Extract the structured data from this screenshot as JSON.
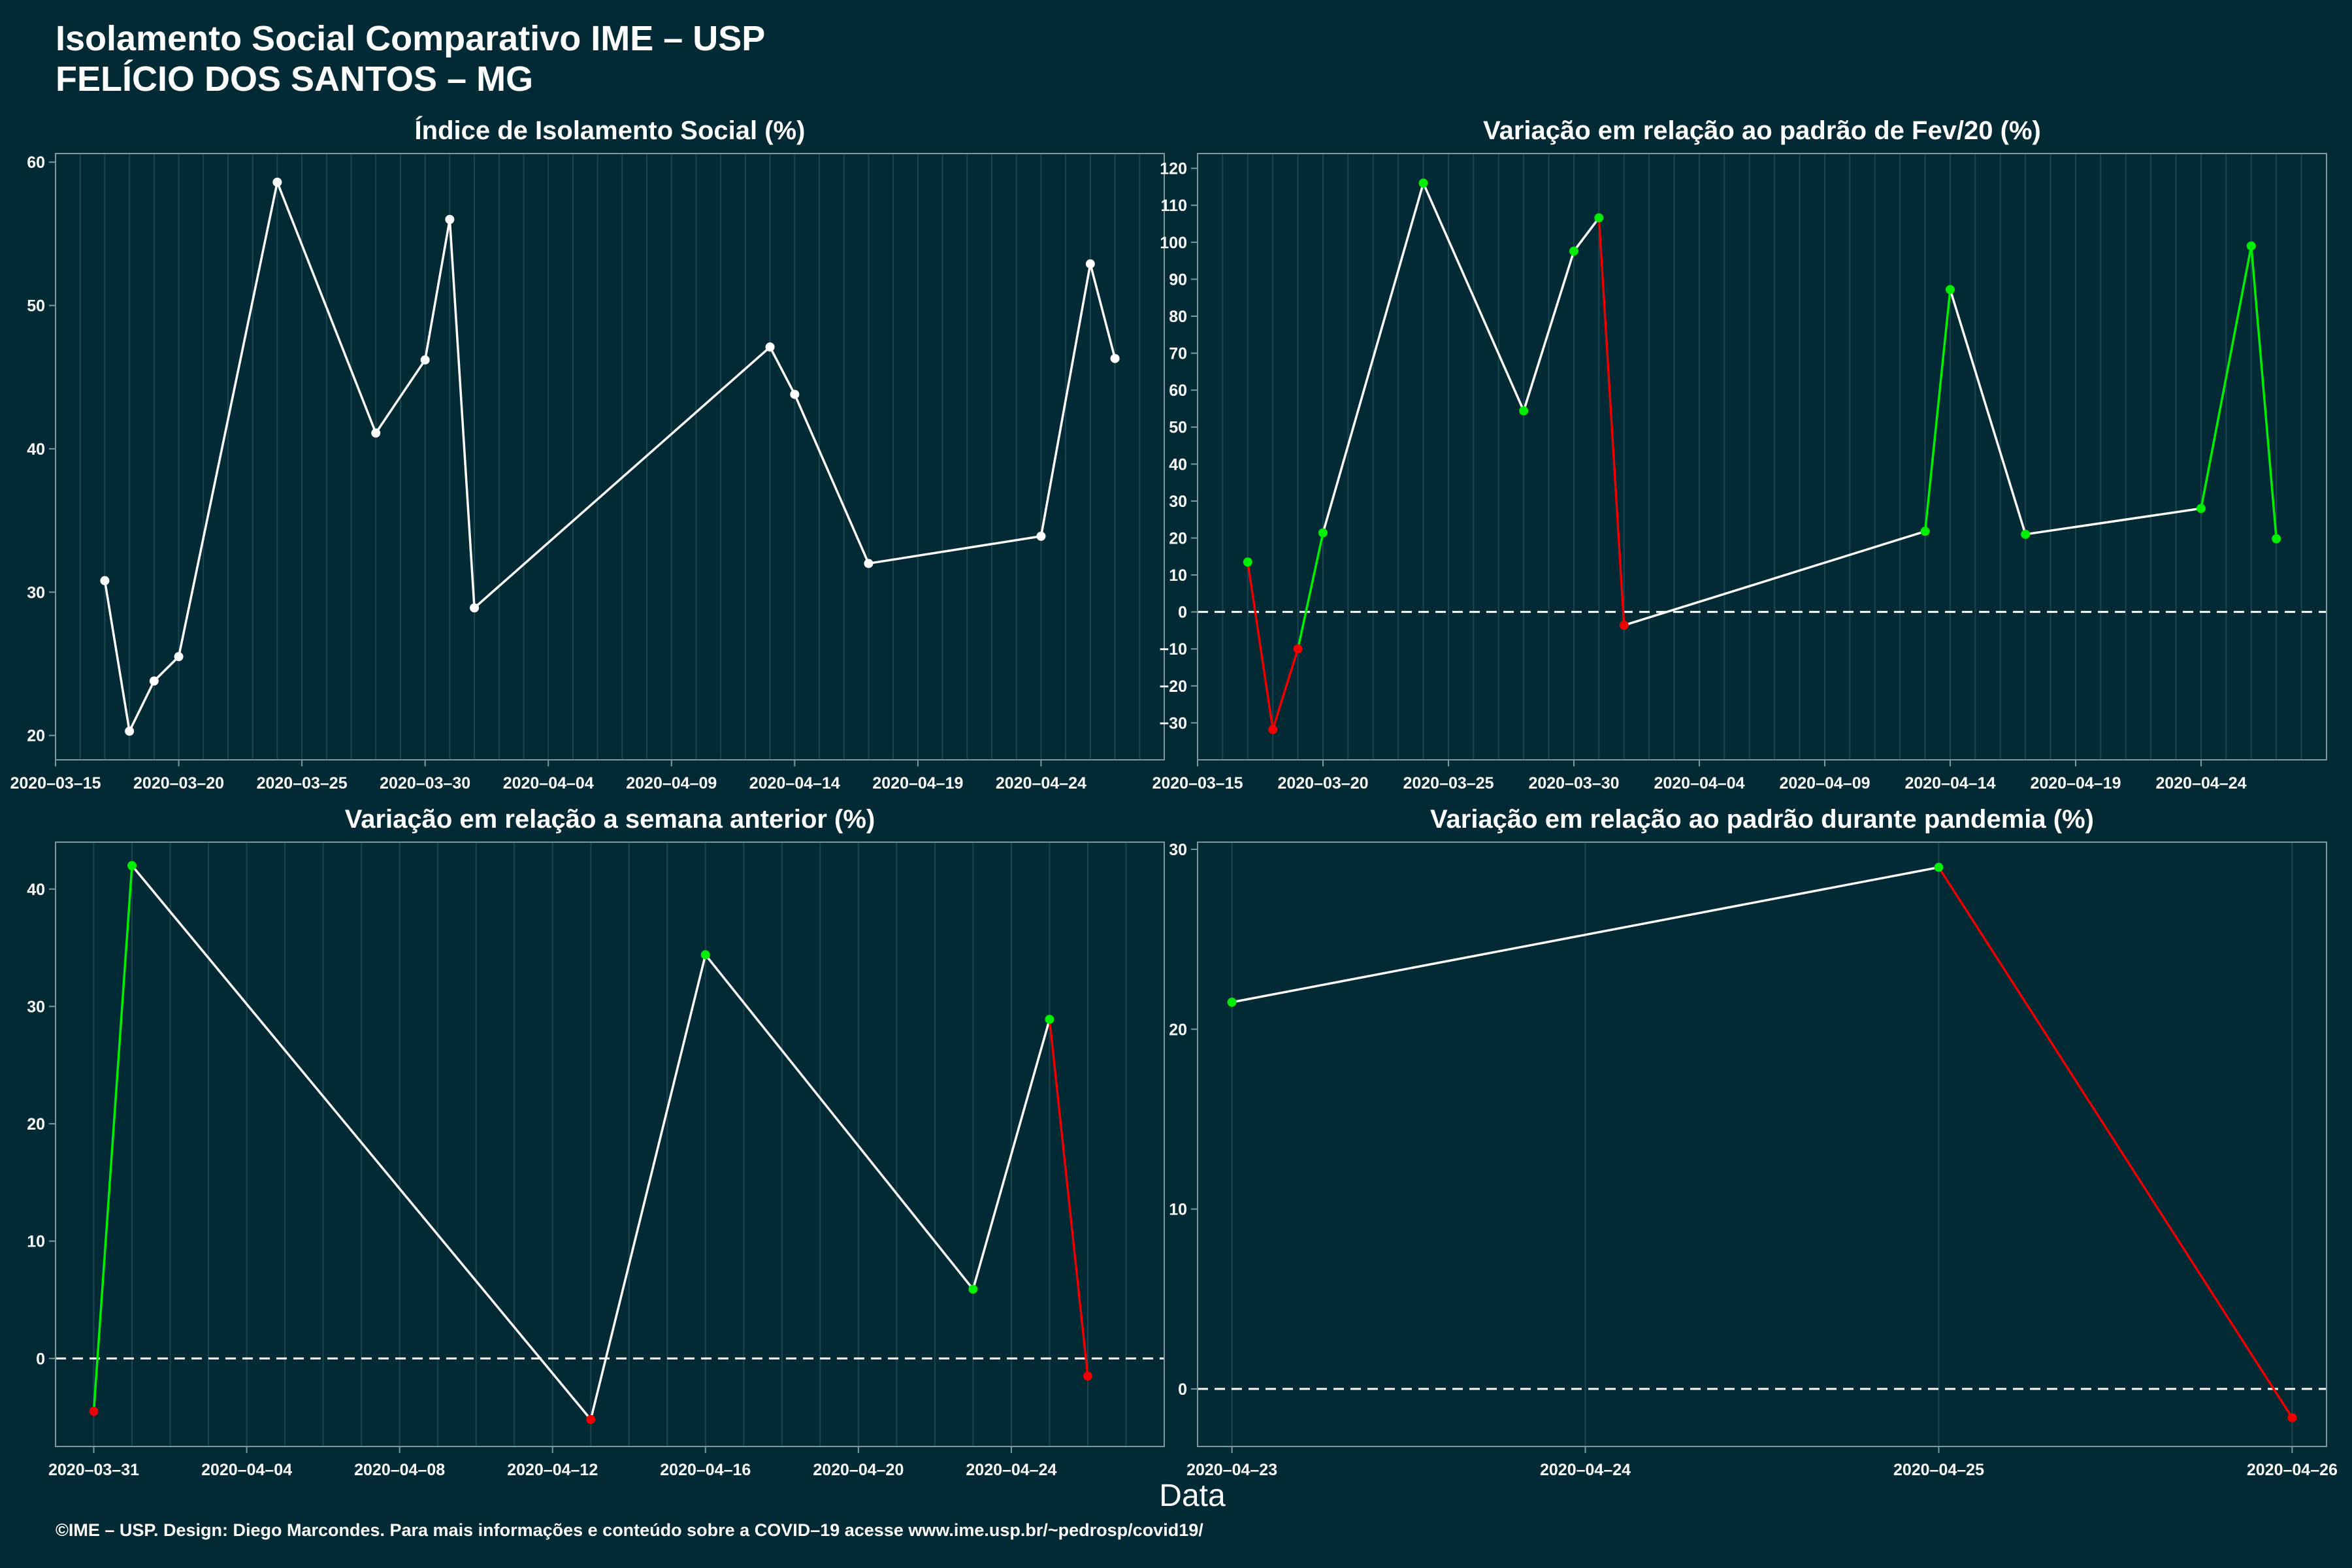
{
  "title_line1": "Isolamento Social Comparativo IME – USP",
  "title_line2": "FELÍCIO DOS SANTOS – MG",
  "x_axis_label": "Data",
  "footer": "©IME – USP. Design: Diego Marcondes. Para mais informações e conteúdo sobre a COVID–19 acesse www.ime.usp.br/~pedrosp/covid19/",
  "colors": {
    "background": "#012a35",
    "panel_border": "#7f98a0",
    "gridline": "#1d4550",
    "neutral": "#ffffff",
    "increase": "#00ee00",
    "decrease": "#ee0000"
  },
  "chart_data": [
    {
      "type": "line",
      "title": "Índice de Isolamento Social (%)",
      "xlim": [
        "2020-03-15",
        "2020-04-29"
      ],
      "ylim": [
        18.3,
        60.6
      ],
      "xticks": [
        "2020-03-15",
        "2020-03-20",
        "2020-03-25",
        "2020-03-30",
        "2020-04-04",
        "2020-04-09",
        "2020-04-14",
        "2020-04-19",
        "2020-04-24"
      ],
      "xtick_labels": [
        "2020–03–15",
        "2020–03–20",
        "2020–03–25",
        "2020–03–30",
        "2020–04–04",
        "2020–04–09",
        "2020–04–14",
        "2020–04–19",
        "2020–04–24"
      ],
      "yticks": [
        20,
        30,
        40,
        50,
        60
      ],
      "ytick_labels": [
        "20",
        "30",
        "40",
        "50",
        "60"
      ],
      "zero_line": false,
      "x": [
        "2020-03-17",
        "2020-03-18",
        "2020-03-19",
        "2020-03-20",
        "2020-03-24",
        "2020-03-28",
        "2020-03-30",
        "2020-03-31",
        "2020-04-01",
        "2020-04-13",
        "2020-04-14",
        "2020-04-17",
        "2020-04-24",
        "2020-04-26",
        "2020-04-27"
      ],
      "y": [
        30.8,
        20.3,
        23.8,
        25.5,
        58.6,
        41.1,
        46.2,
        56.0,
        28.9,
        47.1,
        43.8,
        32.0,
        33.9,
        52.9,
        46.3
      ],
      "point_colors": [
        "neutral",
        "neutral",
        "neutral",
        "neutral",
        "neutral",
        "neutral",
        "neutral",
        "neutral",
        "neutral",
        "neutral",
        "neutral",
        "neutral",
        "neutral",
        "neutral",
        "neutral"
      ],
      "segment_colors": [
        "neutral",
        "neutral",
        "neutral",
        "neutral",
        "neutral",
        "neutral",
        "neutral",
        "neutral",
        "neutral",
        "neutral",
        "neutral",
        "neutral",
        "neutral",
        "neutral"
      ]
    },
    {
      "type": "line",
      "title": "Variação em relação ao padrão de Fev/20 (%)",
      "xlim": [
        "2020-03-15",
        "2020-04-29"
      ],
      "ylim": [
        -40,
        124
      ],
      "xticks": [
        "2020-03-15",
        "2020-03-20",
        "2020-03-25",
        "2020-03-30",
        "2020-04-04",
        "2020-04-09",
        "2020-04-14",
        "2020-04-19",
        "2020-04-24"
      ],
      "xtick_labels": [
        "2020–03–15",
        "2020–03–20",
        "2020–03–25",
        "2020–03–30",
        "2020–04–04",
        "2020–04–09",
        "2020–04–14",
        "2020–04–19",
        "2020–04–24"
      ],
      "yticks": [
        -30,
        -20,
        -10,
        0,
        10,
        20,
        30,
        40,
        50,
        60,
        70,
        80,
        90,
        100,
        110,
        120
      ],
      "ytick_labels": [
        "−30",
        "−20",
        "−10",
        "0",
        "10",
        "20",
        "30",
        "40",
        "50",
        "60",
        "70",
        "80",
        "90",
        "100",
        "110",
        "120"
      ],
      "zero_line": true,
      "x": [
        "2020-03-17",
        "2020-03-18",
        "2020-03-19",
        "2020-03-20",
        "2020-03-24",
        "2020-03-28",
        "2020-03-30",
        "2020-03-31",
        "2020-04-01",
        "2020-04-13",
        "2020-04-14",
        "2020-04-17",
        "2020-04-24",
        "2020-04-26",
        "2020-04-27"
      ],
      "y": [
        13.5,
        -31.8,
        -10.0,
        21.4,
        116.0,
        54.4,
        97.6,
        106.6,
        -3.6,
        21.8,
        87.2,
        21.0,
        28.0,
        99.0,
        19.8
      ],
      "point_colors": [
        "increase",
        "decrease",
        "decrease",
        "increase",
        "increase",
        "increase",
        "increase",
        "increase",
        "decrease",
        "increase",
        "increase",
        "increase",
        "increase",
        "increase",
        "increase"
      ],
      "segment_colors": [
        "decrease",
        "decrease",
        "increase",
        "neutral",
        "neutral",
        "neutral",
        "neutral",
        "decrease",
        "neutral",
        "increase",
        "neutral",
        "neutral",
        "increase",
        "increase"
      ]
    },
    {
      "type": "line",
      "title": "Variação em relação a semana anterior (%)",
      "xlim": [
        "2020-03-30",
        "2020-04-28"
      ],
      "ylim": [
        -7.5,
        44
      ],
      "xticks": [
        "2020-03-31",
        "2020-04-04",
        "2020-04-08",
        "2020-04-12",
        "2020-04-16",
        "2020-04-20",
        "2020-04-24"
      ],
      "xtick_labels": [
        "2020–03–31",
        "2020–04–04",
        "2020–04–08",
        "2020–04–12",
        "2020–04–16",
        "2020–04–20",
        "2020–04–24"
      ],
      "yticks": [
        0,
        10,
        20,
        30,
        40
      ],
      "ytick_labels": [
        "0",
        "10",
        "20",
        "30",
        "40"
      ],
      "zero_line": true,
      "x": [
        "2020-03-31",
        "2020-04-01",
        "2020-04-13",
        "2020-04-16",
        "2020-04-23",
        "2020-04-25",
        "2020-04-26"
      ],
      "y": [
        -4.5,
        42.0,
        -5.2,
        34.4,
        5.9,
        28.9,
        -1.5
      ],
      "point_colors": [
        "decrease",
        "increase",
        "decrease",
        "increase",
        "increase",
        "increase",
        "decrease"
      ],
      "segment_colors": [
        "increase",
        "neutral",
        "neutral",
        "neutral",
        "neutral",
        "decrease"
      ]
    },
    {
      "type": "line",
      "title": "Variação em relação ao padrão durante pandemia (%)",
      "xlim": [
        "2020-04-22T21:40",
        "2020-04-26T02:20"
      ],
      "ylim": [
        -3.2,
        30.4
      ],
      "xticks": [
        "2020-04-23",
        "2020-04-24",
        "2020-04-25",
        "2020-04-26"
      ],
      "xtick_labels": [
        "2020–04–23",
        "2020–04–24",
        "2020–04–25",
        "2020–04–26"
      ],
      "yticks": [
        0,
        10,
        20,
        30
      ],
      "ytick_labels": [
        "0",
        "10",
        "20",
        "30"
      ],
      "zero_line": true,
      "x": [
        "2020-04-23",
        "2020-04-25",
        "2020-04-26"
      ],
      "y": [
        21.5,
        29.0,
        -1.6
      ],
      "point_colors": [
        "increase",
        "increase",
        "decrease"
      ],
      "segment_colors": [
        "neutral",
        "decrease"
      ]
    }
  ]
}
